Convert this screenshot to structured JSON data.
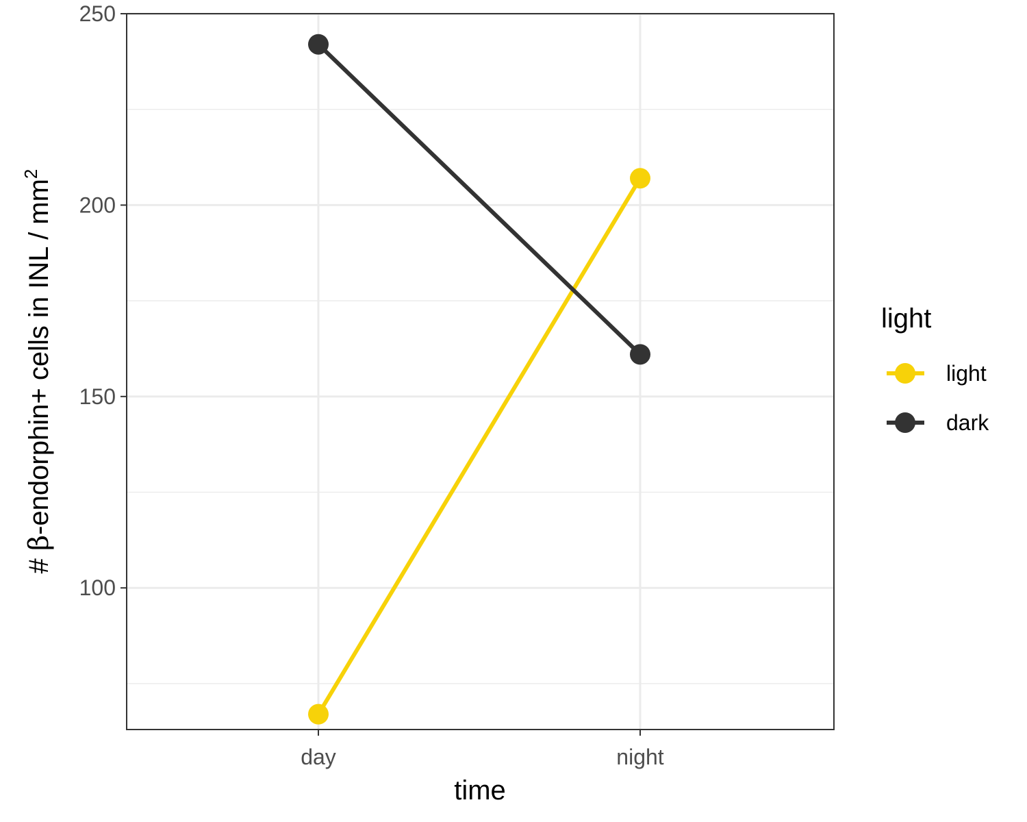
{
  "chart_data": {
    "type": "line",
    "x": [
      "day",
      "night"
    ],
    "xlabel": "time",
    "ylabel_parts": {
      "prefix": "# ",
      "greek": "β",
      "main": "-endorphin+ cells in INL / mm",
      "superscript": "2"
    },
    "ylim": [
      63,
      250
    ],
    "yticks": [
      100,
      150,
      200,
      250
    ],
    "grid": true,
    "legend": {
      "title": "light",
      "position": "right"
    },
    "series": [
      {
        "name": "light",
        "values": [
          67,
          207
        ],
        "color": "#f7d209"
      },
      {
        "name": "dark",
        "values": [
          242,
          161
        ],
        "color": "#333333"
      }
    ]
  }
}
